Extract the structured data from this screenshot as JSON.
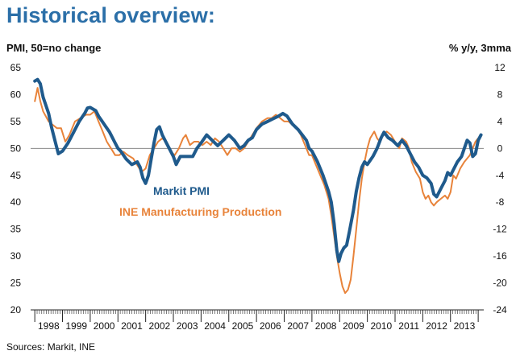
{
  "title": "Historical overview:",
  "source": "Sources: Markit, INE",
  "chart_data": {
    "type": "line",
    "left_axis_label": "PMI, 50=no change",
    "right_axis_label": "% y/y, 3mma",
    "left_ylim": [
      20,
      65
    ],
    "left_ticks": [
      "65",
      "60",
      "55",
      "50",
      "45",
      "40",
      "35",
      "30",
      "25",
      "20"
    ],
    "right_ylim": [
      -24,
      12
    ],
    "right_ticks": [
      "12",
      "8",
      "4",
      "0",
      "-4",
      "-8",
      "-12",
      "-16",
      "-20",
      "-24"
    ],
    "x_labels": [
      "1998",
      "1999",
      "2000",
      "2001",
      "2002",
      "2003",
      "2004",
      "2005",
      "2006",
      "2007",
      "2008",
      "2009",
      "2010",
      "2011",
      "2012",
      "2013"
    ],
    "reference_line_value": 50,
    "colors": {
      "pmi": "#1f5a8c",
      "ine": "#e8833a",
      "title": "#2b6fa8"
    },
    "series": [
      {
        "name": "Markit PMI",
        "axis": "left",
        "points": [
          [
            1998.0,
            62.5
          ],
          [
            1998.1,
            62.8
          ],
          [
            1998.2,
            62.0
          ],
          [
            1998.3,
            59.5
          ],
          [
            1998.5,
            56.5
          ],
          [
            1998.6,
            54.0
          ],
          [
            1998.75,
            51.0
          ],
          [
            1998.85,
            49.0
          ],
          [
            1999.0,
            49.5
          ],
          [
            1999.2,
            51.0
          ],
          [
            1999.4,
            53.0
          ],
          [
            1999.6,
            55.0
          ],
          [
            1999.8,
            56.5
          ],
          [
            1999.9,
            57.5
          ],
          [
            2000.0,
            57.6
          ],
          [
            2000.2,
            57.0
          ],
          [
            2000.3,
            56.0
          ],
          [
            2000.5,
            54.5
          ],
          [
            2000.7,
            53.0
          ],
          [
            2000.9,
            51.0
          ],
          [
            2001.0,
            50.0
          ],
          [
            2001.1,
            49.5
          ],
          [
            2001.3,
            48.0
          ],
          [
            2001.5,
            47.0
          ],
          [
            2001.7,
            47.5
          ],
          [
            2001.8,
            46.5
          ],
          [
            2001.9,
            44.5
          ],
          [
            2002.0,
            43.5
          ],
          [
            2002.1,
            45.0
          ],
          [
            2002.2,
            48.0
          ],
          [
            2002.3,
            51.0
          ],
          [
            2002.4,
            53.5
          ],
          [
            2002.5,
            54.0
          ],
          [
            2002.6,
            52.5
          ],
          [
            2002.75,
            51.0
          ],
          [
            2002.9,
            49.5
          ],
          [
            2003.0,
            48.5
          ],
          [
            2003.1,
            47.0
          ],
          [
            2003.25,
            48.5
          ],
          [
            2003.5,
            48.5
          ],
          [
            2003.7,
            48.5
          ],
          [
            2003.85,
            50.0
          ],
          [
            2004.0,
            51.0
          ],
          [
            2004.2,
            52.5
          ],
          [
            2004.4,
            51.5
          ],
          [
            2004.6,
            50.5
          ],
          [
            2004.8,
            51.5
          ],
          [
            2005.0,
            52.5
          ],
          [
            2005.2,
            51.5
          ],
          [
            2005.4,
            50.0
          ],
          [
            2005.55,
            50.5
          ],
          [
            2005.7,
            51.5
          ],
          [
            2005.85,
            52.0
          ],
          [
            2006.0,
            53.5
          ],
          [
            2006.2,
            54.5
          ],
          [
            2006.4,
            55.0
          ],
          [
            2006.6,
            55.5
          ],
          [
            2006.8,
            56.0
          ],
          [
            2006.95,
            56.5
          ],
          [
            2007.1,
            56.0
          ],
          [
            2007.3,
            54.5
          ],
          [
            2007.5,
            53.5
          ],
          [
            2007.65,
            52.5
          ],
          [
            2007.8,
            51.5
          ],
          [
            2007.9,
            50.0
          ],
          [
            2008.0,
            49.5
          ],
          [
            2008.2,
            47.5
          ],
          [
            2008.4,
            45.0
          ],
          [
            2008.6,
            42.0
          ],
          [
            2008.7,
            40.0
          ],
          [
            2008.8,
            36.0
          ],
          [
            2008.9,
            31.0
          ],
          [
            2008.97,
            29.0
          ],
          [
            2009.05,
            30.5
          ],
          [
            2009.15,
            31.5
          ],
          [
            2009.25,
            32.0
          ],
          [
            2009.35,
            34.5
          ],
          [
            2009.5,
            38.5
          ],
          [
            2009.6,
            42.0
          ],
          [
            2009.7,
            44.5
          ],
          [
            2009.8,
            46.5
          ],
          [
            2009.9,
            47.5
          ],
          [
            2010.0,
            47.0
          ],
          [
            2010.2,
            48.5
          ],
          [
            2010.35,
            50.0
          ],
          [
            2010.5,
            52.0
          ],
          [
            2010.6,
            53.0
          ],
          [
            2010.75,
            52.0
          ],
          [
            2010.9,
            51.5
          ],
          [
            2011.0,
            51.0
          ],
          [
            2011.1,
            50.5
          ],
          [
            2011.25,
            51.5
          ],
          [
            2011.4,
            50.5
          ],
          [
            2011.55,
            49.0
          ],
          [
            2011.7,
            47.5
          ],
          [
            2011.85,
            46.5
          ],
          [
            2012.0,
            45.0
          ],
          [
            2012.15,
            44.5
          ],
          [
            2012.3,
            43.5
          ],
          [
            2012.4,
            41.5
          ],
          [
            2012.5,
            41.0
          ],
          [
            2012.65,
            42.5
          ],
          [
            2012.8,
            44.0
          ],
          [
            2012.9,
            45.5
          ],
          [
            2013.0,
            45.0
          ],
          [
            2013.1,
            46.0
          ],
          [
            2013.25,
            47.5
          ],
          [
            2013.4,
            48.5
          ],
          [
            2013.5,
            50.0
          ],
          [
            2013.6,
            51.5
          ],
          [
            2013.7,
            51.0
          ],
          [
            2013.8,
            48.5
          ],
          [
            2013.9,
            49.0
          ],
          [
            2014.0,
            51.5
          ],
          [
            2014.1,
            52.5
          ]
        ]
      },
      {
        "name": "INE Manufacturing Production",
        "axis": "right",
        "points": [
          [
            1998.0,
            7.0
          ],
          [
            1998.1,
            9.0
          ],
          [
            1998.2,
            7.0
          ],
          [
            1998.3,
            5.5
          ],
          [
            1998.5,
            4.0
          ],
          [
            1998.65,
            3.5
          ],
          [
            1998.8,
            3.0
          ],
          [
            1998.95,
            3.0
          ],
          [
            1999.1,
            1.0
          ],
          [
            1999.25,
            2.0
          ],
          [
            1999.45,
            4.0
          ],
          [
            1999.65,
            4.5
          ],
          [
            1999.85,
            5.0
          ],
          [
            2000.0,
            5.0
          ],
          [
            2000.15,
            5.5
          ],
          [
            2000.3,
            4.0
          ],
          [
            2000.45,
            2.5
          ],
          [
            2000.6,
            1.0
          ],
          [
            2000.75,
            0.0
          ],
          [
            2000.9,
            -1.0
          ],
          [
            2001.05,
            -1.0
          ],
          [
            2001.2,
            -0.5
          ],
          [
            2001.35,
            -1.0
          ],
          [
            2001.55,
            -1.5
          ],
          [
            2001.7,
            -2.5
          ],
          [
            2001.85,
            -3.5
          ],
          [
            2002.0,
            -3.0
          ],
          [
            2002.15,
            -1.0
          ],
          [
            2002.3,
            0.0
          ],
          [
            2002.45,
            1.0
          ],
          [
            2002.6,
            1.5
          ],
          [
            2002.75,
            1.0
          ],
          [
            2002.9,
            -0.5
          ],
          [
            2003.05,
            -1.0
          ],
          [
            2003.2,
            0.0
          ],
          [
            2003.35,
            1.5
          ],
          [
            2003.45,
            2.0
          ],
          [
            2003.6,
            0.5
          ],
          [
            2003.75,
            1.0
          ],
          [
            2003.9,
            1.0
          ],
          [
            2004.05,
            0.5
          ],
          [
            2004.2,
            1.0
          ],
          [
            2004.35,
            0.5
          ],
          [
            2004.5,
            1.5
          ],
          [
            2004.65,
            1.0
          ],
          [
            2004.8,
            0.0
          ],
          [
            2004.95,
            -1.0
          ],
          [
            2005.1,
            0.0
          ],
          [
            2005.25,
            0.0
          ],
          [
            2005.4,
            -0.5
          ],
          [
            2005.55,
            0.0
          ],
          [
            2005.7,
            1.0
          ],
          [
            2005.85,
            2.0
          ],
          [
            2006.0,
            3.0
          ],
          [
            2006.2,
            4.0
          ],
          [
            2006.4,
            4.5
          ],
          [
            2006.55,
            4.5
          ],
          [
            2006.7,
            5.0
          ],
          [
            2006.85,
            4.5
          ],
          [
            2007.0,
            4.0
          ],
          [
            2007.15,
            4.0
          ],
          [
            2007.3,
            3.5
          ],
          [
            2007.45,
            3.0
          ],
          [
            2007.6,
            2.0
          ],
          [
            2007.75,
            0.5
          ],
          [
            2007.9,
            -1.0
          ],
          [
            2008.0,
            -1.0
          ],
          [
            2008.15,
            -2.5
          ],
          [
            2008.3,
            -4.0
          ],
          [
            2008.45,
            -5.5
          ],
          [
            2008.6,
            -7.5
          ],
          [
            2008.7,
            -10.0
          ],
          [
            2008.8,
            -13.0
          ],
          [
            2008.9,
            -16.0
          ],
          [
            2009.0,
            -18.5
          ],
          [
            2009.1,
            -20.5
          ],
          [
            2009.2,
            -21.5
          ],
          [
            2009.3,
            -21.0
          ],
          [
            2009.4,
            -19.5
          ],
          [
            2009.5,
            -16.0
          ],
          [
            2009.6,
            -12.0
          ],
          [
            2009.7,
            -8.0
          ],
          [
            2009.8,
            -4.5
          ],
          [
            2009.9,
            -2.0
          ],
          [
            2010.0,
            0.0
          ],
          [
            2010.1,
            1.5
          ],
          [
            2010.25,
            2.5
          ],
          [
            2010.35,
            1.5
          ],
          [
            2010.45,
            1.0
          ],
          [
            2010.55,
            2.0
          ],
          [
            2010.7,
            2.5
          ],
          [
            2010.85,
            2.0
          ],
          [
            2011.0,
            1.0
          ],
          [
            2011.15,
            0.0
          ],
          [
            2011.25,
            1.5
          ],
          [
            2011.4,
            1.0
          ],
          [
            2011.5,
            0.0
          ],
          [
            2011.6,
            -2.0
          ],
          [
            2011.75,
            -3.5
          ],
          [
            2011.9,
            -4.5
          ],
          [
            2012.0,
            -6.5
          ],
          [
            2012.1,
            -7.5
          ],
          [
            2012.2,
            -7.0
          ],
          [
            2012.3,
            -8.0
          ],
          [
            2012.4,
            -8.5
          ],
          [
            2012.5,
            -8.0
          ],
          [
            2012.65,
            -7.5
          ],
          [
            2012.8,
            -7.0
          ],
          [
            2012.9,
            -7.5
          ],
          [
            2013.0,
            -6.5
          ],
          [
            2013.1,
            -4.0
          ],
          [
            2013.2,
            -4.5
          ],
          [
            2013.35,
            -3.0
          ],
          [
            2013.5,
            -2.0
          ],
          [
            2013.6,
            -1.5
          ],
          [
            2013.7,
            -1.0
          ],
          [
            2013.8,
            0.0
          ],
          [
            2013.9,
            1.0
          ],
          [
            2014.0,
            1.5
          ]
        ]
      }
    ]
  }
}
